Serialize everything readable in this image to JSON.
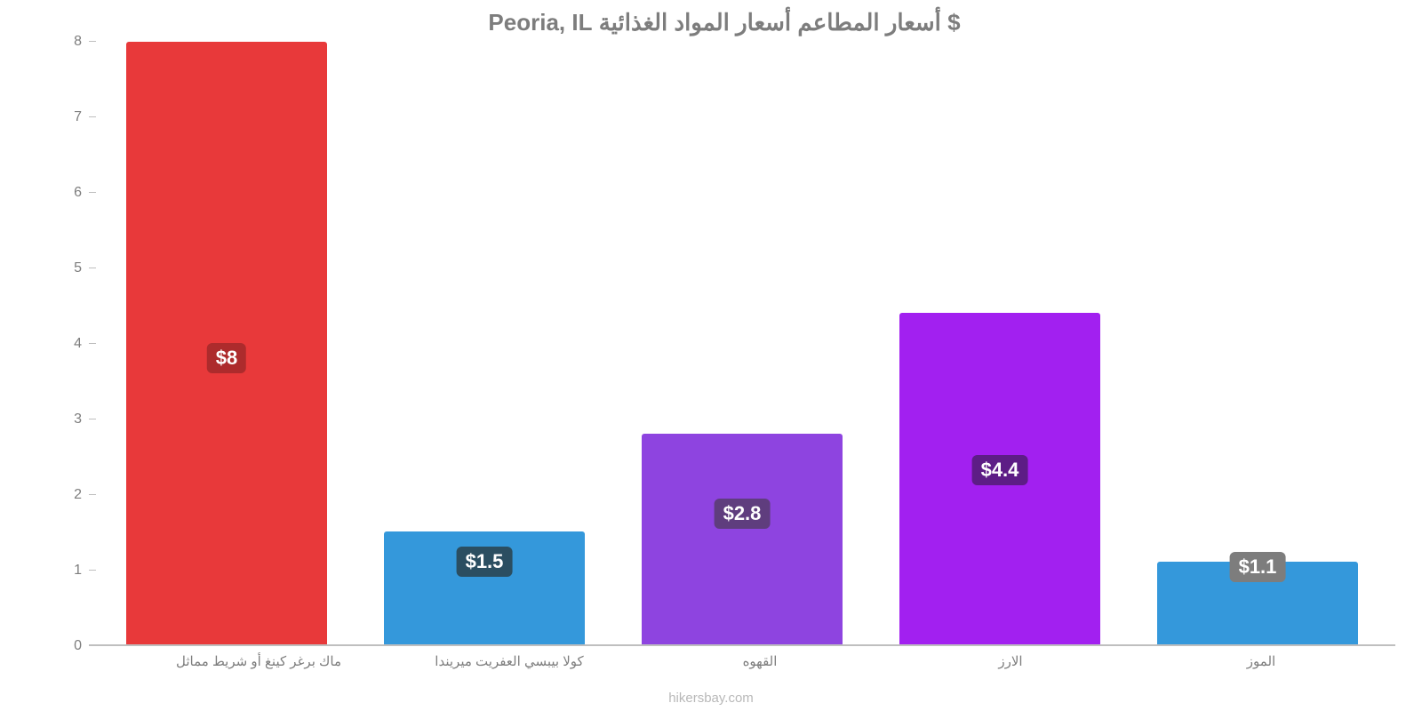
{
  "chart": {
    "type": "bar",
    "title": "$ أسعار المطاعم أسعار المواد الغذائية Peoria, IL",
    "title_color": "#7d7d7d",
    "title_fontsize": 26,
    "background_color": "#ffffff",
    "axis_color": "#bfbfbf",
    "label_color": "#7d7d7d",
    "label_fontsize": 15,
    "ylim": [
      0,
      8
    ],
    "ytick_step": 1,
    "yticks": [
      0,
      1,
      2,
      3,
      4,
      5,
      6,
      7,
      8
    ],
    "bar_width_pct": 78,
    "value_label_fontsize": 22,
    "value_label_color": "#ffffff",
    "value_label_radius": 6,
    "bars": [
      {
        "category": "ماك برغر كينغ أو شريط مماثل",
        "value": 8.0,
        "display": "$8",
        "fill": "#e8393a",
        "badge_bg": "#ad2b2c",
        "badge_bottom_pct": 45
      },
      {
        "category": "كولا بيبسي العفريت ميريندا",
        "value": 1.5,
        "display": "$1.5",
        "fill": "#3498db",
        "badge_bg": "#2b4e61",
        "badge_bottom_pct": 60
      },
      {
        "category": "القهوه",
        "value": 2.8,
        "display": "$2.8",
        "fill": "#8e44e0",
        "badge_bg": "#5f3d7e",
        "badge_bottom_pct": 55
      },
      {
        "category": "الارز",
        "value": 4.4,
        "display": "$4.4",
        "fill": "#a220f0",
        "badge_bg": "#5d1d86",
        "badge_bottom_pct": 48
      },
      {
        "category": "الموز",
        "value": 1.1,
        "display": "$1.1",
        "fill": "#3498db",
        "badge_bg": "#7d7d7d",
        "badge_bottom_pct": 75
      }
    ],
    "watermark": "hikersbay.com",
    "watermark_color": "#b8b8b8"
  }
}
